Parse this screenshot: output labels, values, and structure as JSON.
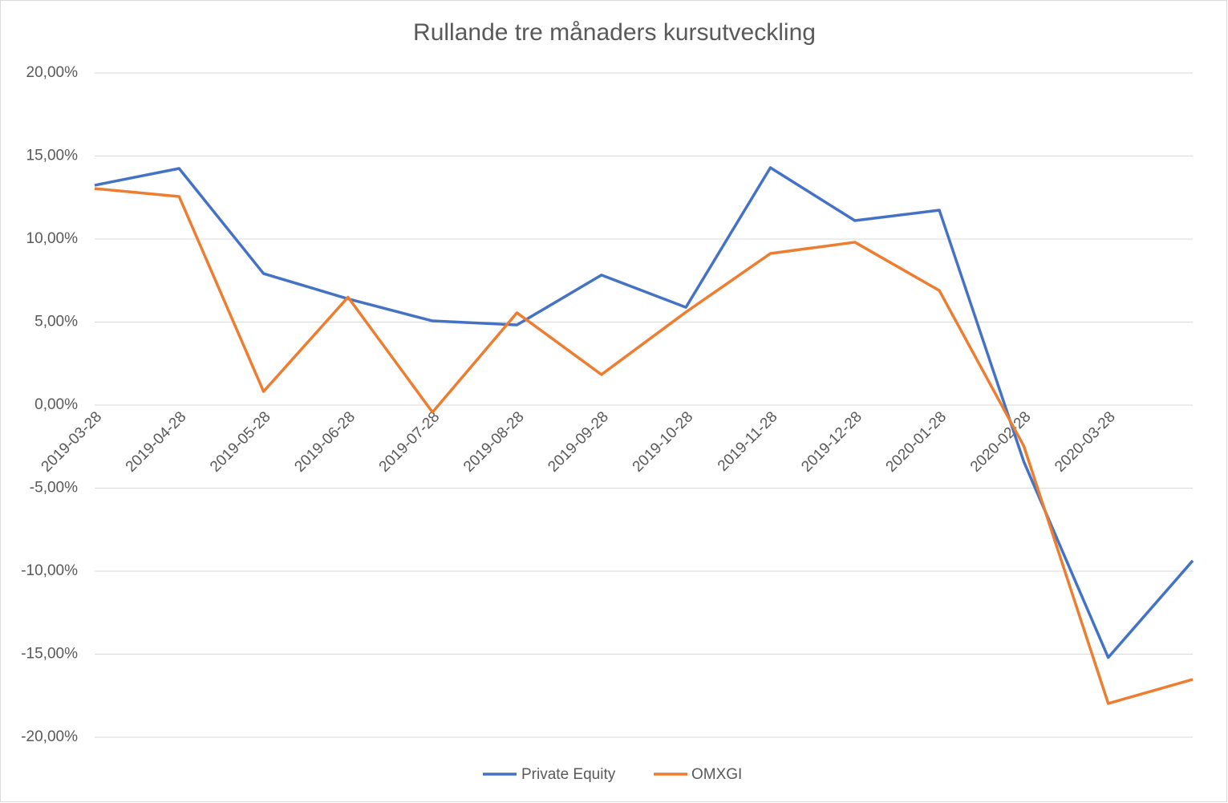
{
  "chart_data": {
    "type": "line",
    "title": "Rullande tre månaders kursutveckling",
    "categories": [
      "2019-03-28",
      "2019-04-28",
      "2019-05-28",
      "2019-06-28",
      "2019-07-28",
      "2019-08-28",
      "2019-09-28",
      "2019-10-28",
      "2019-11-28",
      "2019-12-28",
      "2020-01-28",
      "2020-02-28",
      "2020-03-28",
      null
    ],
    "series": [
      {
        "name": "Private Equity",
        "color": "#4472c4",
        "values": [
          13.24,
          14.25,
          7.92,
          6.4,
          5.07,
          4.83,
          7.83,
          5.89,
          14.3,
          11.11,
          11.74,
          -3.4,
          -15.2,
          -9.37
        ]
      },
      {
        "name": "OMXGI",
        "color": "#ed7d31",
        "values": [
          13.04,
          12.56,
          0.82,
          6.5,
          -0.43,
          5.56,
          1.84,
          5.6,
          9.13,
          9.81,
          6.9,
          -2.46,
          -17.97,
          -16.52
        ]
      }
    ],
    "ylim": [
      -20,
      20
    ],
    "yticks": [
      {
        "value": -20,
        "label": "-20,00%"
      },
      {
        "value": -15,
        "label": "-15,00%"
      },
      {
        "value": -10,
        "label": "-10,00%"
      },
      {
        "value": -5,
        "label": "-5,00%"
      },
      {
        "value": 0,
        "label": "0,00%"
      },
      {
        "value": 5,
        "label": "5,00%"
      },
      {
        "value": 10,
        "label": "10,00%"
      },
      {
        "value": 15,
        "label": "15,00%"
      },
      {
        "value": 20,
        "label": "20,00%"
      }
    ],
    "grid": true,
    "legend": "bottom"
  }
}
